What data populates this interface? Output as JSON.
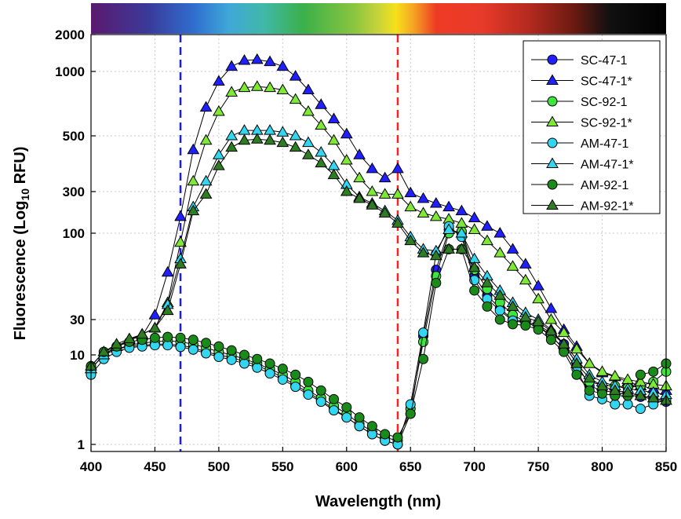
{
  "chart_data": {
    "type": "line",
    "xlabel": "Wavelength (nm)",
    "ylabel_main": "Fluorescence (Log",
    "ylabel_sub": "10",
    "ylabel_end": " RFU)",
    "xlim": [
      400,
      850
    ],
    "x_ticks": [
      400,
      450,
      500,
      550,
      600,
      650,
      700,
      750,
      800,
      850
    ],
    "y_ticks": [
      {
        "label": "1",
        "value": 1
      },
      {
        "label": "10",
        "value": 10
      },
      {
        "label": "30",
        "value": 30
      },
      {
        "label": "100",
        "value": 100
      },
      {
        "label": "300",
        "value": 300
      },
      {
        "label": "500",
        "value": 500
      },
      {
        "label": "1000",
        "value": 1000
      },
      {
        "label": "2000",
        "value": 2000
      }
    ],
    "y_scale": "piecewise-log",
    "grid": true,
    "legend_position": "top-right",
    "vlines": [
      {
        "x": 470,
        "color": "#1a1aff"
      },
      {
        "x": 640,
        "color": "#ff2020"
      }
    ],
    "spectrum_bar": true,
    "x": [
      400,
      410,
      420,
      430,
      440,
      450,
      460,
      470,
      480,
      490,
      500,
      510,
      520,
      530,
      540,
      550,
      560,
      570,
      580,
      590,
      600,
      610,
      620,
      630,
      640,
      650,
      660,
      670,
      680,
      690,
      700,
      710,
      720,
      730,
      740,
      750,
      760,
      770,
      780,
      790,
      800,
      810,
      820,
      830,
      840,
      850
    ],
    "series": [
      {
        "name": "SC-47-1",
        "marker": "circle",
        "color": "#1f1fff",
        "values": [
          7,
          10,
          12,
          13,
          13.5,
          14,
          14,
          13.5,
          12.5,
          11,
          10,
          9.3,
          8.5,
          7.6,
          6.6,
          5.6,
          4.6,
          3.8,
          3.1,
          2.5,
          2,
          1.6,
          1.3,
          1.1,
          1,
          2.2,
          18,
          60,
          110,
          100,
          55,
          42,
          35,
          30,
          28,
          25,
          20,
          14,
          8,
          4.5,
          4,
          3.8,
          3.6,
          3.4,
          3.2,
          3
        ]
      },
      {
        "name": "SC-47-1*",
        "marker": "triangle",
        "color": "#1f1fff",
        "values": [
          7,
          10,
          13,
          16,
          18,
          32,
          58,
          155,
          440,
          680,
          900,
          1100,
          1230,
          1250,
          1200,
          1100,
          950,
          820,
          700,
          600,
          510,
          420,
          370,
          340,
          370,
          290,
          250,
          220,
          200,
          180,
          150,
          120,
          100,
          80,
          65,
          48,
          35,
          22,
          13,
          8,
          6.3,
          5.7,
          5,
          4.5,
          4.2,
          4
        ]
      },
      {
        "name": "SC-92-1",
        "marker": "circle",
        "color": "#3ce63c",
        "values": [
          7,
          10,
          12,
          13.5,
          14.5,
          15,
          15.5,
          15,
          14,
          12.5,
          11,
          10,
          9,
          8,
          7,
          6,
          5,
          4,
          3.3,
          2.7,
          2.2,
          1.7,
          1.4,
          1.2,
          1.1,
          2.5,
          15,
          55,
          100,
          105,
          60,
          46,
          38,
          32,
          28,
          25,
          18,
          12,
          7,
          5,
          4.6,
          4.5,
          4.3,
          4.5,
          5,
          6.5
        ]
      },
      {
        "name": "SC-92-1*",
        "marker": "triangle",
        "color": "#7ee835",
        "values": [
          7,
          10,
          13,
          16,
          19,
          23,
          38,
          88,
          330,
          480,
          650,
          800,
          840,
          850,
          840,
          820,
          740,
          650,
          560,
          480,
          400,
          340,
          300,
          280,
          280,
          200,
          170,
          155,
          145,
          130,
          110,
          90,
          76,
          63,
          52,
          40,
          30,
          20,
          12,
          8,
          6.5,
          5.8,
          5.3,
          5,
          4.7,
          4.5
        ]
      },
      {
        "name": "AM-47-1",
        "marker": "circle",
        "color": "#33d6f0",
        "values": [
          6,
          9,
          11,
          12.5,
          13,
          13.5,
          13.5,
          12.8,
          11.8,
          10.5,
          9.5,
          8.8,
          8,
          7.2,
          6.2,
          5.3,
          4.4,
          3.6,
          3,
          2.4,
          2,
          1.6,
          1.3,
          1.1,
          1,
          2.8,
          20,
          75,
          120,
          95,
          52,
          40,
          34,
          29,
          27,
          24,
          18,
          12,
          7,
          3.5,
          3.2,
          2.8,
          2.8,
          2.5,
          2.8,
          3.2
        ]
      },
      {
        "name": "AM-47-1*",
        "marker": "triangle",
        "color": "#33d6f0",
        "values": [
          7,
          10,
          13,
          16,
          19,
          23,
          37,
          70,
          200,
          330,
          420,
          500,
          530,
          530,
          530,
          520,
          500,
          470,
          430,
          380,
          320,
          260,
          220,
          180,
          140,
          95,
          80,
          78,
          110,
          100,
          70,
          55,
          45,
          38,
          33,
          30,
          22,
          14,
          9,
          6,
          5,
          4.5,
          4.2,
          4,
          3.8,
          3.6
        ]
      },
      {
        "name": "AM-92-1",
        "marker": "circle",
        "color": "#1a8a1a",
        "values": [
          7.5,
          11,
          13,
          15,
          16,
          17,
          17.5,
          17,
          16,
          14.5,
          13,
          11.5,
          10,
          9,
          8,
          7,
          6,
          5,
          4,
          3.2,
          2.6,
          2,
          1.6,
          1.3,
          1.2,
          2.2,
          9,
          50,
          80,
          80,
          45,
          36,
          30,
          26,
          25,
          22,
          16,
          11,
          6,
          4,
          3.7,
          3.5,
          3.5,
          6,
          6.5,
          8
        ]
      },
      {
        "name": "AM-92-1*",
        "marker": "triangle",
        "color": "#2e7d22",
        "values": [
          7.5,
          11,
          14,
          16.5,
          19,
          23,
          34,
          65,
          180,
          280,
          380,
          450,
          480,
          485,
          480,
          470,
          450,
          420,
          390,
          350,
          300,
          250,
          210,
          170,
          130,
          90,
          76,
          73,
          80,
          80,
          62,
          50,
          42,
          36,
          31,
          28,
          21,
          14,
          8,
          5.5,
          4.5,
          4,
          3.8,
          3.5,
          3.3,
          3.1
        ]
      }
    ]
  }
}
